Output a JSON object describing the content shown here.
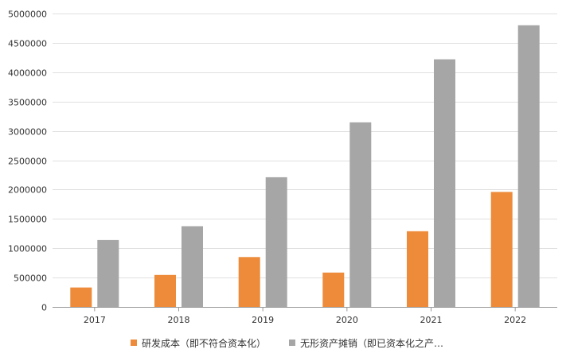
{
  "chart_data": {
    "type": "bar",
    "title": "",
    "xlabel": "",
    "ylabel": "",
    "categories": [
      "2017",
      "2018",
      "2019",
      "2020",
      "2021",
      "2022"
    ],
    "series": [
      {
        "name": "研发成本（即不符合资本化）",
        "color": "#ED8B3A",
        "values": [
          330000,
          545000,
          850000,
          585000,
          1290000,
          1960000
        ]
      },
      {
        "name": "无形资产摊销（即已资本化之产…",
        "color": "#A6A6A6",
        "values": [
          1140000,
          1375000,
          2210000,
          3145000,
          4220000,
          4800000
        ]
      }
    ],
    "ylim": [
      0,
      5000000
    ],
    "yticks": [
      "0",
      "500000",
      "1000000",
      "1500000",
      "2000000",
      "2500000",
      "3000000",
      "3500000",
      "4000000",
      "4500000",
      "5000000"
    ],
    "grid": true,
    "legend_position": "bottom"
  }
}
